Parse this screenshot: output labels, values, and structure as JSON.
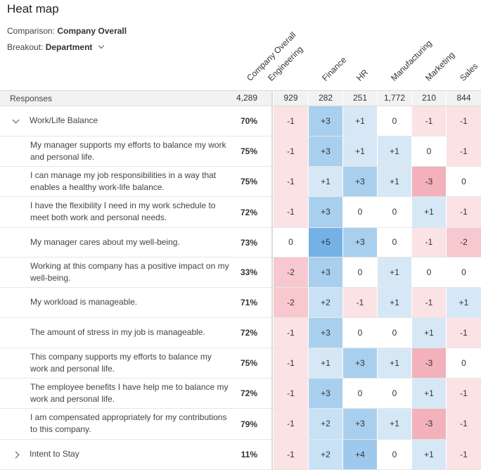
{
  "title": "Heat map",
  "comparison": {
    "label": "Comparison:",
    "value": "Company Overall"
  },
  "breakout": {
    "label": "Breakout:",
    "value": "Department"
  },
  "columns": [
    "Company Overall",
    "Engineering",
    "Finance",
    "HR",
    "Manufacturing",
    "Marketing",
    "Sales"
  ],
  "responses": {
    "label": "Responses",
    "overall": "4,289",
    "values": [
      "929",
      "282",
      "251",
      "1,772",
      "210",
      "844"
    ]
  },
  "colors": {
    "neg2": "#f7c9cf",
    "neg1": "#fbe2e5",
    "neg3": "#f3b1bb",
    "zero": "#ffffff",
    "pos1": "#d6e8f6",
    "pos2": "#c9e1f4",
    "pos3": "#a9cfee",
    "pos4": "#9ec9ec",
    "pos5": "#74b2e6"
  },
  "rows": [
    {
      "type": "group",
      "expanded": true,
      "label": "Work/Life Balance",
      "overall": "70%",
      "values": [
        "-1",
        "+3",
        "+1",
        "0",
        "-1",
        "-1"
      ]
    },
    {
      "type": "item",
      "label": "My manager supports my efforts to balance my work and personal life.",
      "overall": "75%",
      "values": [
        "-1",
        "+3",
        "+1",
        "+1",
        "0",
        "-1"
      ]
    },
    {
      "type": "item",
      "label": "I can manage my job responsibilities in a way that enables a healthy work-life balance.",
      "overall": "75%",
      "values": [
        "-1",
        "+1",
        "+3",
        "+1",
        "-3",
        "0"
      ]
    },
    {
      "type": "item",
      "label": "I have the flexibility I need in my work schedule to meet both work and personal needs.",
      "overall": "72%",
      "values": [
        "-1",
        "+3",
        "0",
        "0",
        "+1",
        "-1"
      ]
    },
    {
      "type": "item",
      "label": "My manager cares about my well-being.",
      "overall": "73%",
      "values": [
        "0",
        "+5",
        "+3",
        "0",
        "-1",
        "-2"
      ]
    },
    {
      "type": "item",
      "label": "Working at this company has a positive impact on my well-being.",
      "overall": "33%",
      "values": [
        "-2",
        "+3",
        "0",
        "+1",
        "0",
        "0"
      ]
    },
    {
      "type": "item",
      "label": "My workload is manageable.",
      "overall": "71%",
      "values": [
        "-2",
        "+2",
        "-1",
        "+1",
        "-1",
        "+1"
      ]
    },
    {
      "type": "item",
      "label": "The amount of stress in my job is manageable.",
      "overall": "72%",
      "values": [
        "-1",
        "+3",
        "0",
        "0",
        "+1",
        "-1"
      ]
    },
    {
      "type": "item",
      "label": "This company supports my efforts to balance my work and personal life.",
      "overall": "75%",
      "values": [
        "-1",
        "+1",
        "+3",
        "+1",
        "-3",
        "0"
      ]
    },
    {
      "type": "item",
      "label": "The employee benefits I have help me to balance my work and personal life.",
      "overall": "72%",
      "values": [
        "-1",
        "+3",
        "0",
        "0",
        "+1",
        "-1"
      ]
    },
    {
      "type": "item",
      "label": "I am compensated appropriately for my contributions to this company.",
      "overall": "79%",
      "values": [
        "-1",
        "+2",
        "+3",
        "+1",
        "-3",
        "-1"
      ]
    },
    {
      "type": "group",
      "expanded": false,
      "label": "Intent to Stay",
      "overall": "11%",
      "values": [
        "-1",
        "+2",
        "+4",
        "0",
        "+1",
        "-1"
      ]
    }
  ]
}
